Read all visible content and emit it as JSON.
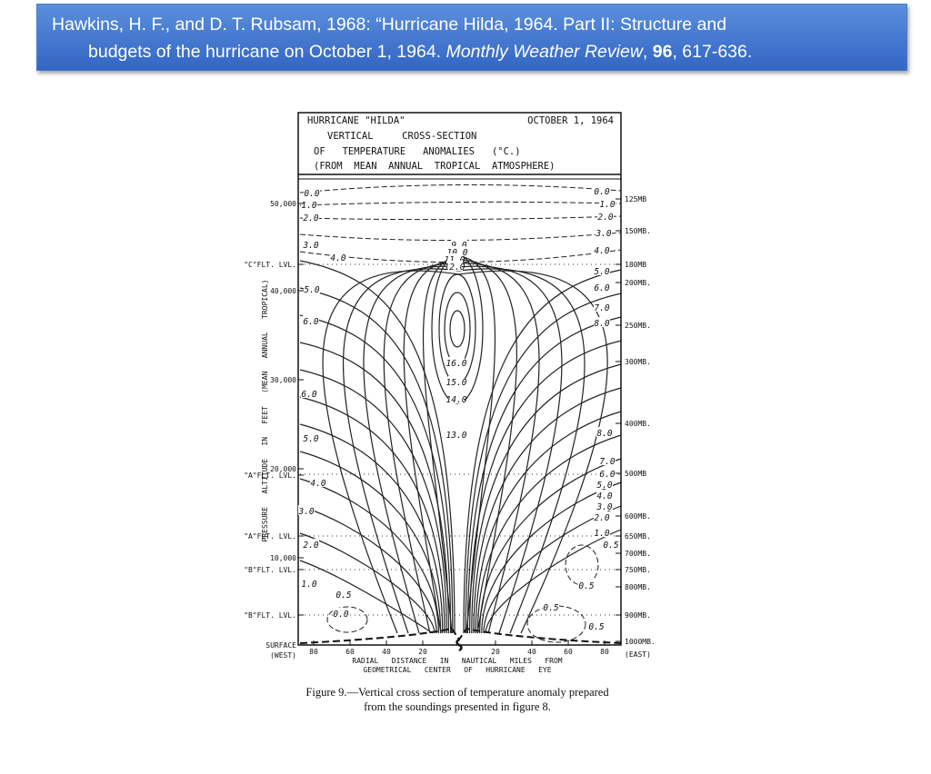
{
  "citation": {
    "line1": "Hawkins, H. F., and D. T. Rubsam, 1968: “Hurricane Hilda, 1964. Part II: Structure and",
    "line2": "budgets of the hurricane on October 1, 1964.  ",
    "journal": "Monthly Weather Review",
    "journal_sep": ", ",
    "volume": "96",
    "pages": ", 617-636."
  },
  "figure": {
    "header": [
      "HURRICANE \"HILDA\"",
      "OCTOBER 1, 1964",
      "VERTICAL     CROSS-SECTION",
      "OF   TEMPERATURE   ANOMALIES   (°C.)",
      "(FROM  MEAN  ANNUAL  TROPICAL  ATMOSPHERE)"
    ],
    "y_axis_title": "PRESSURE   ALTITUDE   IN   FEET   (MEAN   ANNUAL   TROPICAL)",
    "left_labels": [
      "50,000",
      "\"C\"FLT. LVL.",
      "40,000",
      "30,000",
      "20,000",
      "\"A\"FLT. LVL.",
      "\"A\"FLT. LVL.",
      "10,000",
      "\"B\"FLT. LVL.",
      "\"B\"FLT. LVL.",
      "SURFACE",
      "(WEST)"
    ],
    "right_labels": [
      "125MB",
      "150MB.",
      "180MB",
      "200MB.",
      "250MB.",
      "300MB.",
      "400MB.",
      "500MB",
      "600MB.",
      "650MB.",
      "700MB.",
      "750MB.",
      "800MB.",
      "900MB.",
      "1000MB.",
      "(EAST)"
    ],
    "x_ticks": [
      "80",
      "60",
      "40",
      "20",
      "20",
      "40",
      "60",
      "80"
    ],
    "x_title": [
      "RADIAL   DISTANCE   IN   NAUTICAL   MILES   FROM",
      "GEOMETRICAL   CENTER   OF   HURRICANE   EYE"
    ],
    "contour_labels": [
      "0.0",
      "1.0",
      "2.0",
      "3.0",
      "4.0",
      "5.0",
      "6.0",
      "6.0",
      "5.0",
      "4.0",
      "3.0",
      "2.0",
      "1.0",
      "0.5",
      "0.0",
      "0.0",
      "1.0",
      "2.0",
      "3.0",
      "4.0",
      "5.0",
      "6.0",
      "7.0",
      "8.0",
      "8.0",
      "7.0",
      "6.0",
      "5.0",
      "4.0",
      "3.0",
      "2.0",
      "1.0",
      "0.5",
      "0.5",
      "0.5",
      "0.5",
      "9.0",
      "10.0",
      "11.0",
      "12.0",
      "16.0",
      "15.0",
      "14.0",
      "13.0"
    ],
    "caption": [
      "Figure 9.—Vertical cross section of temperature anomaly prepared",
      "from the soundings presented in figure 8."
    ]
  }
}
